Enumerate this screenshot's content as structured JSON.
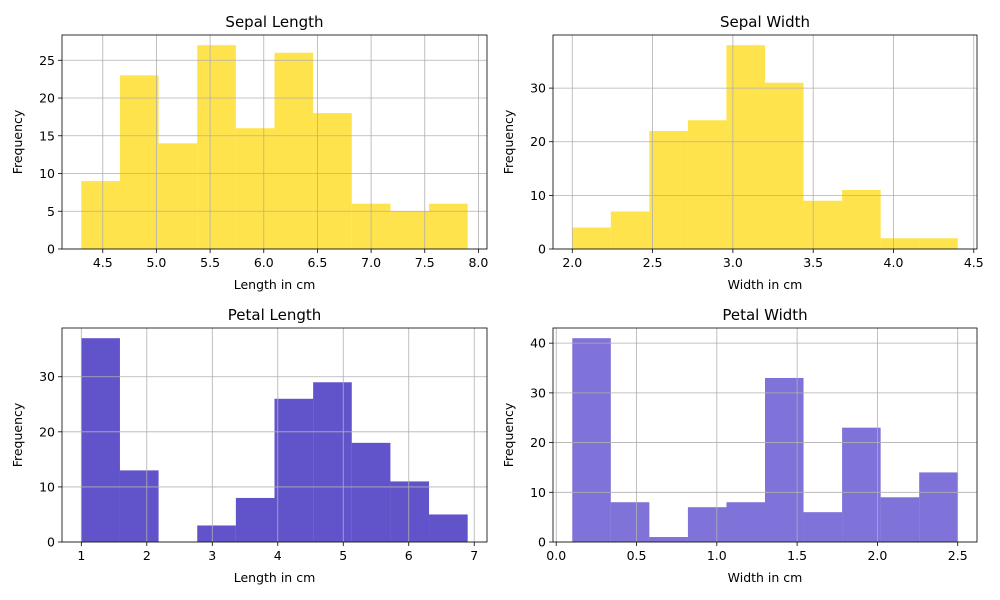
{
  "chart_data": [
    {
      "type": "bar",
      "title": "Sepal Length",
      "xlabel": "Length in cm",
      "ylabel": "Frequency",
      "color": "#FFD700",
      "opacity": 0.7,
      "grid": true,
      "bin_edges": [
        4.3,
        4.66,
        5.02,
        5.38,
        5.74,
        6.1,
        6.46,
        6.82,
        7.18,
        7.54,
        7.9
      ],
      "values": [
        9,
        23,
        14,
        27,
        16,
        26,
        18,
        6,
        5,
        6
      ],
      "xlim": [
        4.12,
        8.08
      ],
      "ylim": [
        0,
        28.35
      ],
      "xticks": [
        4.5,
        5.0,
        5.5,
        6.0,
        6.5,
        7.0,
        7.5,
        8.0
      ],
      "xtick_labels": [
        "4.5",
        "5.0",
        "5.5",
        "6.0",
        "6.5",
        "7.0",
        "7.5",
        "8.0"
      ],
      "yticks": [
        0,
        5,
        10,
        15,
        20,
        25
      ],
      "ytick_labels": [
        "0",
        "5",
        "10",
        "15",
        "20",
        "25"
      ]
    },
    {
      "type": "bar",
      "title": "Sepal Width",
      "xlabel": "Width in cm",
      "ylabel": "Frequency",
      "color": "#FFD700",
      "opacity": 0.7,
      "grid": true,
      "bin_edges": [
        2.0,
        2.24,
        2.48,
        2.72,
        2.96,
        3.2,
        3.44,
        3.68,
        3.92,
        4.16,
        4.4
      ],
      "values": [
        4,
        7,
        22,
        24,
        38,
        31,
        9,
        11,
        2,
        2
      ],
      "xlim": [
        1.88,
        4.52
      ],
      "ylim": [
        0,
        39.9
      ],
      "xticks": [
        2.0,
        2.5,
        3.0,
        3.5,
        4.0,
        4.5
      ],
      "xtick_labels": [
        "2.0",
        "2.5",
        "3.0",
        "3.5",
        "4.0",
        "4.5"
      ],
      "yticks": [
        0,
        10,
        20,
        30
      ],
      "ytick_labels": [
        "0",
        "10",
        "20",
        "30"
      ]
    },
    {
      "type": "bar",
      "title": "Petal Length",
      "xlabel": "Length in cm",
      "ylabel": "Frequency",
      "color": "#1E0BB4",
      "opacity": 0.7,
      "grid": true,
      "bin_edges": [
        1.0,
        1.59,
        2.18,
        2.77,
        3.36,
        3.95,
        4.54,
        5.13,
        5.72,
        6.31,
        6.9
      ],
      "values": [
        37,
        13,
        0,
        3,
        8,
        26,
        29,
        18,
        11,
        5
      ],
      "xlim": [
        0.705,
        7.195
      ],
      "ylim": [
        0,
        38.85
      ],
      "xticks": [
        1,
        2,
        3,
        4,
        5,
        6,
        7
      ],
      "xtick_labels": [
        "1",
        "2",
        "3",
        "4",
        "5",
        "6",
        "7"
      ],
      "yticks": [
        0,
        10,
        20,
        30
      ],
      "ytick_labels": [
        "0",
        "10",
        "20",
        "30"
      ]
    },
    {
      "type": "bar",
      "title": "Petal Width",
      "xlabel": "Width in cm",
      "ylabel": "Frequency",
      "color": "#3A27C4",
      "opacity": 0.65,
      "grid": true,
      "bin_edges": [
        0.1,
        0.34,
        0.58,
        0.82,
        1.06,
        1.3,
        1.54,
        1.78,
        2.02,
        2.26,
        2.5
      ],
      "values": [
        41,
        8,
        1,
        7,
        8,
        33,
        6,
        23,
        9,
        14
      ],
      "xlim": [
        -0.02,
        2.62
      ],
      "ylim": [
        0,
        43.05
      ],
      "xticks": [
        0.0,
        0.5,
        1.0,
        1.5,
        2.0,
        2.5
      ],
      "xtick_labels": [
        "0.0",
        "0.5",
        "1.0",
        "1.5",
        "2.0",
        "2.5"
      ],
      "yticks": [
        0,
        10,
        20,
        30,
        40
      ],
      "ytick_labels": [
        "0",
        "10",
        "20",
        "30",
        "40"
      ]
    }
  ]
}
